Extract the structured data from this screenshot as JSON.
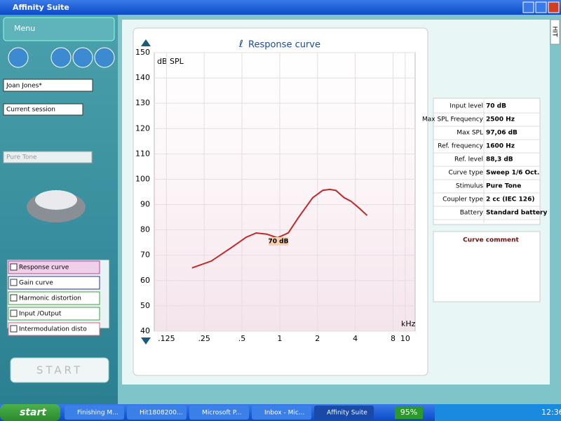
{
  "window": {
    "title": "Affinity Suite",
    "side_tab": "HIT"
  },
  "left_panel": {
    "menu": "Menu",
    "patient": "Joan Jones*",
    "session": "Current session",
    "stimulus": "Pure Tone",
    "curves": [
      "Response curve",
      "Gain curve",
      "Harmonic distortion",
      "Input /Output",
      "Intermodulation disto"
    ],
    "start": "START"
  },
  "chart_data": {
    "type": "line",
    "title": "Response curve",
    "y_label": "dB SPL",
    "x_label": "kHz",
    "annotation": "70 dB",
    "x": [
      0.2,
      0.285,
      0.42,
      0.54,
      0.65,
      0.79,
      0.96,
      1.17,
      1.41,
      1.83,
      2.2,
      2.5,
      2.8,
      3.26,
      3.7,
      4.32,
      4.97
    ],
    "values": [
      65,
      67.7,
      73.3,
      77.1,
      78.8,
      78.3,
      76.9,
      78.8,
      84.9,
      92.7,
      95.6,
      96,
      95.6,
      92.7,
      91.3,
      88.5,
      85.7
    ],
    "color": "#c0282a",
    "log_x": true,
    "grid": true,
    "xlim": [
      0.1,
      12
    ],
    "xticks": [
      {
        "value": 0.125,
        "label": ".125"
      },
      {
        "value": 0.25,
        "label": ".25"
      },
      {
        "value": 0.5,
        "label": ".5"
      },
      1,
      2,
      4,
      8,
      10
    ],
    "ylim": [
      40,
      150
    ],
    "yticks": [
      40,
      50,
      60,
      70,
      80,
      90,
      100,
      110,
      120,
      130,
      140,
      150
    ]
  },
  "info": {
    "rows": [
      {
        "label": "Input level",
        "value": "70 dB"
      },
      {
        "label": "Max SPL Frequency",
        "value": "2500 Hz"
      },
      {
        "label": "Max SPL",
        "value": "97,06 dB"
      },
      {
        "label": "Ref. frequency",
        "value": "1600 Hz"
      },
      {
        "label": "Ref. level",
        "value": "88,3 dB"
      },
      {
        "label": "Curve type",
        "value": "Sweep 1/6 Oct."
      },
      {
        "label": "Stimulus",
        "value": "Pure Tone"
      },
      {
        "label": "Coupler type",
        "value": "2 cc (IEC 126)"
      },
      {
        "label": "Battery",
        "value": "Standard battery"
      }
    ],
    "comment": "Curve comment"
  },
  "taskbar": {
    "start": "start",
    "items": [
      "Finishing M...",
      "Hit1808200...",
      "Microsoft P...",
      "Inbox - Mic...",
      "Affinity Suite"
    ],
    "battery": "95%",
    "clock": "12:36"
  }
}
